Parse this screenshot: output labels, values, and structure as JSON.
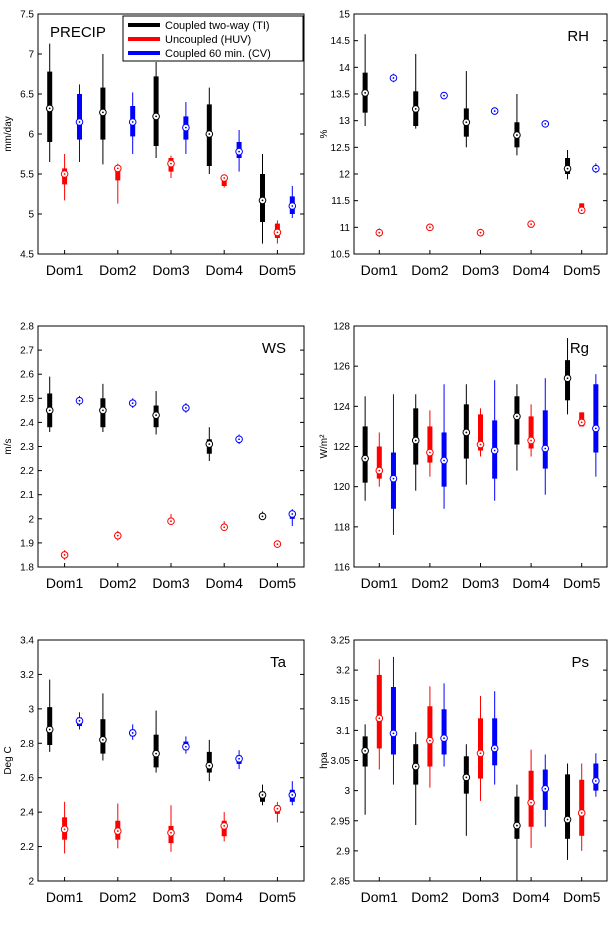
{
  "legend": {
    "items": [
      {
        "label": "Coupled two-way (TI)",
        "color": "#000000"
      },
      {
        "label": "Uncoupled (HUV)",
        "color": "#ff0000"
      },
      {
        "label": "Coupled 60 min. (CV)",
        "color": "#0000ff"
      }
    ]
  },
  "chart_data": [
    {
      "id": "precip",
      "type": "box",
      "panel_label": "PRECIP",
      "ylabel": "mm/day",
      "ylim": [
        4.5,
        7.5
      ],
      "yticks": [
        "4.5",
        "5",
        "5.5",
        "6",
        "6.5",
        "7",
        "7.5"
      ],
      "categories": [
        "Dom1",
        "Dom2",
        "Dom3",
        "Dom4",
        "Dom5"
      ],
      "series": [
        {
          "color": "#000000",
          "boxes": [
            [
              5.65,
              5.9,
              6.32,
              6.78,
              7.13
            ],
            [
              5.62,
              5.93,
              6.27,
              6.58,
              7.0
            ],
            [
              5.7,
              5.85,
              6.22,
              6.72,
              6.9
            ],
            [
              5.5,
              5.6,
              6.0,
              6.37,
              6.58
            ],
            [
              4.63,
              4.9,
              5.17,
              5.5,
              5.75
            ]
          ]
        },
        {
          "color": "#ff0000",
          "boxes": [
            [
              5.17,
              5.37,
              5.5,
              5.57,
              5.75
            ],
            [
              5.13,
              5.42,
              5.57,
              5.6,
              5.63
            ],
            [
              5.45,
              5.53,
              5.63,
              5.7,
              5.73
            ],
            [
              5.33,
              5.35,
              5.45,
              5.47,
              5.48
            ],
            [
              4.63,
              4.7,
              4.77,
              4.88,
              4.92
            ]
          ]
        },
        {
          "color": "#0000ff",
          "boxes": [
            [
              5.65,
              5.93,
              6.15,
              6.5,
              6.62
            ],
            [
              5.75,
              5.97,
              6.15,
              6.35,
              6.52
            ],
            [
              5.75,
              5.93,
              6.08,
              6.22,
              6.4
            ],
            [
              5.53,
              5.7,
              5.78,
              5.9,
              6.05
            ],
            [
              4.95,
              5.0,
              5.1,
              5.22,
              5.35
            ]
          ]
        }
      ]
    },
    {
      "id": "rh",
      "type": "box",
      "panel_label": "RH",
      "ylabel": "%",
      "ylim": [
        10.5,
        15
      ],
      "yticks": [
        "10.5",
        "11",
        "11.5",
        "12",
        "12.5",
        "13",
        "13.5",
        "14",
        "14.5",
        "15"
      ],
      "categories": [
        "Dom1",
        "Dom2",
        "Dom3",
        "Dom4",
        "Dom5"
      ],
      "series": [
        {
          "color": "#000000",
          "boxes": [
            [
              12.9,
              13.15,
              13.52,
              13.9,
              14.62
            ],
            [
              12.85,
              12.9,
              13.22,
              13.55,
              14.25
            ],
            [
              12.5,
              12.7,
              12.97,
              13.23,
              13.93
            ],
            [
              12.35,
              12.5,
              12.73,
              12.97,
              13.5
            ],
            [
              11.9,
              12.0,
              12.1,
              12.3,
              12.45
            ]
          ]
        },
        {
          "color": "#ff0000",
          "boxes": [
            [
              10.82,
              10.87,
              10.9,
              10.93,
              10.98
            ],
            [
              10.98,
              10.99,
              11.0,
              11.01,
              11.02
            ],
            [
              10.83,
              10.87,
              10.9,
              10.93,
              10.97
            ],
            [
              11.03,
              11.04,
              11.06,
              11.08,
              11.1
            ],
            [
              11.28,
              11.3,
              11.32,
              11.45,
              11.45
            ]
          ]
        },
        {
          "color": "#0000ff",
          "boxes": [
            [
              13.72,
              13.75,
              13.8,
              13.85,
              13.88
            ],
            [
              13.4,
              13.43,
              13.47,
              13.5,
              13.53
            ],
            [
              13.12,
              13.15,
              13.18,
              13.22,
              13.25
            ],
            [
              12.88,
              12.9,
              12.94,
              12.97,
              13.0
            ],
            [
              12.02,
              12.05,
              12.1,
              12.15,
              12.2
            ]
          ]
        }
      ]
    },
    {
      "id": "ws",
      "type": "box",
      "panel_label": "WS",
      "ylabel": "m/s",
      "ylim": [
        1.8,
        2.8
      ],
      "yticks": [
        "1.8",
        "1.9",
        "2",
        "2.1",
        "2.2",
        "2.3",
        "2.4",
        "2.5",
        "2.6",
        "2.7",
        "2.8"
      ],
      "categories": [
        "Dom1",
        "Dom2",
        "Dom3",
        "Dom4",
        "Dom5"
      ],
      "series": [
        {
          "color": "#000000",
          "boxes": [
            [
              2.36,
              2.38,
              2.45,
              2.52,
              2.59
            ],
            [
              2.36,
              2.38,
              2.45,
              2.5,
              2.56
            ],
            [
              2.35,
              2.38,
              2.43,
              2.47,
              2.53
            ],
            [
              2.24,
              2.27,
              2.31,
              2.33,
              2.38
            ],
            [
              2.0,
              2.0,
              2.01,
              2.02,
              2.03
            ]
          ]
        },
        {
          "color": "#ff0000",
          "boxes": [
            [
              1.83,
              1.84,
              1.85,
              1.86,
              1.87
            ],
            [
              1.91,
              1.92,
              1.93,
              1.94,
              1.95
            ],
            [
              1.98,
              1.985,
              1.99,
              2.0,
              2.02
            ],
            [
              1.95,
              1.96,
              1.965,
              1.975,
              1.99
            ],
            [
              1.885,
              1.89,
              1.895,
              1.9,
              1.905
            ]
          ]
        },
        {
          "color": "#0000ff",
          "boxes": [
            [
              2.47,
              2.48,
              2.49,
              2.5,
              2.51
            ],
            [
              2.46,
              2.47,
              2.48,
              2.49,
              2.5
            ],
            [
              2.44,
              2.45,
              2.46,
              2.47,
              2.48
            ],
            [
              2.31,
              2.32,
              2.33,
              2.34,
              2.35
            ],
            [
              1.97,
              2.0,
              2.02,
              2.03,
              2.04
            ]
          ]
        }
      ]
    },
    {
      "id": "rg",
      "type": "box",
      "panel_label": "Rg",
      "ylabel": "W/m²",
      "ylim": [
        116,
        128
      ],
      "yticks": [
        "116",
        "118",
        "120",
        "122",
        "124",
        "126",
        "128"
      ],
      "categories": [
        "Dom1",
        "Dom2",
        "Dom3",
        "Dom4",
        "Dom5"
      ],
      "series": [
        {
          "color": "#000000",
          "boxes": [
            [
              119.3,
              120.2,
              121.4,
              123.0,
              124.5
            ],
            [
              119.8,
              121.1,
              122.3,
              123.9,
              124.6
            ],
            [
              120.1,
              121.4,
              122.7,
              124.1,
              125.1
            ],
            [
              120.8,
              122.1,
              123.5,
              124.5,
              125.1
            ],
            [
              123.6,
              124.3,
              125.4,
              126.3,
              127.4
            ]
          ]
        },
        {
          "color": "#ff0000",
          "boxes": [
            [
              120.0,
              120.4,
              120.8,
              122.0,
              122.7
            ],
            [
              120.5,
              121.2,
              121.7,
              123.0,
              123.8
            ],
            [
              121.5,
              121.8,
              122.1,
              123.6,
              123.9
            ],
            [
              121.5,
              121.9,
              122.3,
              123.5,
              124.1
            ],
            [
              123.0,
              123.0,
              123.2,
              123.7,
              123.7
            ]
          ]
        },
        {
          "color": "#0000ff",
          "boxes": [
            [
              117.6,
              118.9,
              120.4,
              121.7,
              124.6
            ],
            [
              118.9,
              120.0,
              121.3,
              122.7,
              125.1
            ],
            [
              119.3,
              120.4,
              121.8,
              123.3,
              125.3
            ],
            [
              119.6,
              120.9,
              121.9,
              123.8,
              125.4
            ],
            [
              120.5,
              121.7,
              122.9,
              125.1,
              125.6
            ]
          ]
        }
      ]
    },
    {
      "id": "ta",
      "type": "box",
      "panel_label": "Ta",
      "ylabel": "Deg C",
      "ylim": [
        2,
        3.4
      ],
      "yticks": [
        "2",
        "2.2",
        "2.4",
        "2.6",
        "2.8",
        "3",
        "3.2",
        "3.4"
      ],
      "categories": [
        "Dom1",
        "Dom2",
        "Dom3",
        "Dom4",
        "Dom5"
      ],
      "series": [
        {
          "color": "#000000",
          "boxes": [
            [
              2.75,
              2.79,
              2.88,
              3.01,
              3.17
            ],
            [
              2.7,
              2.74,
              2.82,
              2.94,
              3.09
            ],
            [
              2.63,
              2.66,
              2.74,
              2.85,
              2.99
            ],
            [
              2.58,
              2.63,
              2.67,
              2.75,
              2.82
            ],
            [
              2.44,
              2.46,
              2.5,
              2.52,
              2.56
            ]
          ]
        },
        {
          "color": "#ff0000",
          "boxes": [
            [
              2.16,
              2.24,
              2.3,
              2.37,
              2.46
            ],
            [
              2.19,
              2.24,
              2.29,
              2.35,
              2.45
            ],
            [
              2.17,
              2.22,
              2.28,
              2.32,
              2.44
            ],
            [
              2.23,
              2.26,
              2.32,
              2.35,
              2.4
            ],
            [
              2.34,
              2.39,
              2.42,
              2.44,
              2.46
            ]
          ]
        },
        {
          "color": "#0000ff",
          "boxes": [
            [
              2.88,
              2.9,
              2.93,
              2.95,
              2.98
            ],
            [
              2.82,
              2.84,
              2.86,
              2.88,
              2.91
            ],
            [
              2.74,
              2.76,
              2.78,
              2.81,
              2.84
            ],
            [
              2.65,
              2.68,
              2.71,
              2.73,
              2.76
            ],
            [
              2.44,
              2.46,
              2.5,
              2.53,
              2.58
            ]
          ]
        }
      ]
    },
    {
      "id": "ps",
      "type": "box",
      "panel_label": "Ps",
      "ylabel": "hpa",
      "ylim": [
        2.85,
        3.25
      ],
      "yticks": [
        "2.85",
        "2.9",
        "2.95",
        "3",
        "3.05",
        "3.1",
        "3.15",
        "3.2",
        "3.25"
      ],
      "categories": [
        "Dom1",
        "Dom2",
        "Dom3",
        "Dom4",
        "Dom5"
      ],
      "series": [
        {
          "color": "#000000",
          "boxes": [
            [
              2.96,
              3.04,
              3.066,
              3.09,
              3.11
            ],
            [
              2.943,
              3.01,
              3.04,
              3.077,
              3.097
            ],
            [
              2.925,
              2.995,
              3.022,
              3.057,
              3.077
            ],
            [
              2.85,
              2.92,
              2.942,
              2.99,
              3.01
            ],
            [
              2.885,
              2.92,
              2.952,
              3.027,
              3.045
            ]
          ]
        },
        {
          "color": "#ff0000",
          "boxes": [
            [
              3.035,
              3.07,
              3.12,
              3.192,
              3.218
            ],
            [
              3.005,
              3.04,
              3.083,
              3.14,
              3.173
            ],
            [
              2.983,
              3.02,
              3.062,
              3.12,
              3.157
            ],
            [
              2.905,
              2.94,
              2.98,
              3.033,
              3.068
            ],
            [
              2.9,
              2.925,
              2.963,
              3.018,
              3.045
            ]
          ]
        },
        {
          "color": "#0000ff",
          "boxes": [
            [
              3.01,
              3.06,
              3.095,
              3.172,
              3.222
            ],
            [
              3.04,
              3.06,
              3.087,
              3.135,
              3.178
            ],
            [
              3.01,
              3.042,
              3.07,
              3.12,
              3.165
            ],
            [
              2.94,
              2.968,
              3.003,
              3.035,
              3.06
            ],
            [
              2.99,
              3.0,
              3.016,
              3.045,
              3.062
            ]
          ]
        }
      ]
    }
  ]
}
